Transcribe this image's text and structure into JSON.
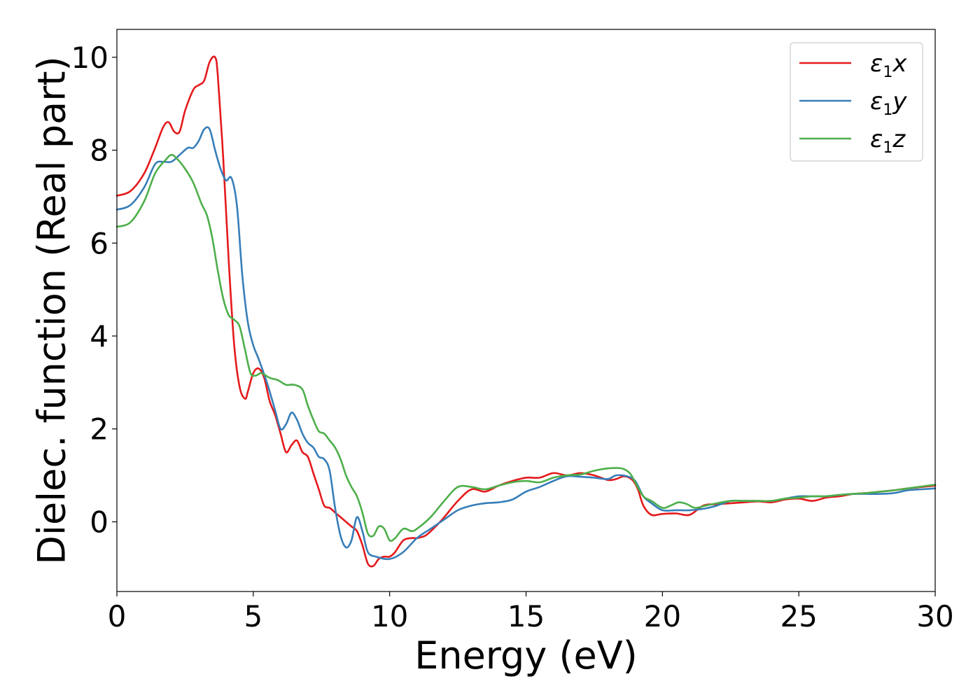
{
  "chart_data": {
    "type": "line",
    "title": "",
    "xlabel": "Energy (eV)",
    "ylabel": "Dielec. function (Real part)",
    "xlim": [
      0,
      30
    ],
    "ylim": [
      -1.5,
      10.6
    ],
    "xticks": [
      0,
      5,
      10,
      15,
      20,
      25,
      30
    ],
    "xtick_labels": [
      "0",
      "5",
      "10",
      "15",
      "20",
      "25",
      "30"
    ],
    "yticks": [
      0,
      2,
      4,
      6,
      8,
      10
    ],
    "ytick_labels": [
      "0",
      "2",
      "4",
      "6",
      "8",
      "10"
    ],
    "grid": false,
    "legend_position": "top-right",
    "series": [
      {
        "name": "ε1x",
        "name_base": "ε",
        "name_sub": "1",
        "name_var": "x",
        "color": "#e41a1c",
        "x": [
          0,
          0.5,
          1.0,
          1.4,
          1.7,
          1.9,
          2.1,
          2.3,
          2.5,
          2.8,
          3.0,
          3.2,
          3.4,
          3.6,
          3.7,
          3.9,
          4.1,
          4.3,
          4.5,
          4.7,
          4.8,
          5.0,
          5.2,
          5.4,
          5.6,
          5.8,
          6.0,
          6.2,
          6.4,
          6.6,
          6.8,
          7.0,
          7.2,
          7.4,
          7.6,
          7.8,
          8.0,
          8.2,
          8.4,
          8.6,
          8.8,
          9.0,
          9.2,
          9.4,
          9.6,
          9.8,
          10.0,
          10.2,
          10.5,
          10.8,
          11.0,
          11.3,
          11.6,
          12.0,
          12.5,
          13.0,
          13.5,
          14.0,
          14.5,
          15.0,
          15.5,
          16.0,
          16.5,
          17.0,
          17.5,
          18.0,
          18.3,
          18.6,
          18.9,
          19.1,
          19.3,
          19.6,
          20.0,
          20.5,
          21.0,
          21.5,
          22.0,
          22.5,
          23.0,
          23.5,
          24.0,
          24.5,
          25.0,
          25.5,
          26.0,
          26.5,
          27.0,
          27.5,
          28.0,
          28.5,
          29.0,
          29.5,
          30.0
        ],
        "y": [
          7.02,
          7.12,
          7.5,
          8.05,
          8.5,
          8.6,
          8.4,
          8.4,
          8.85,
          9.3,
          9.4,
          9.5,
          9.9,
          10.0,
          9.6,
          7.8,
          5.6,
          3.8,
          2.9,
          2.65,
          2.8,
          3.2,
          3.3,
          3.1,
          2.6,
          2.3,
          1.9,
          1.5,
          1.65,
          1.75,
          1.5,
          1.4,
          1.05,
          0.7,
          0.35,
          0.3,
          0.2,
          0.1,
          0.0,
          -0.1,
          -0.2,
          -0.5,
          -0.9,
          -0.95,
          -0.8,
          -0.75,
          -0.75,
          -0.65,
          -0.4,
          -0.35,
          -0.35,
          -0.3,
          -0.15,
          0.1,
          0.45,
          0.7,
          0.65,
          0.78,
          0.88,
          0.95,
          0.95,
          1.05,
          1.0,
          1.05,
          1.0,
          0.9,
          0.92,
          0.98,
          0.9,
          0.7,
          0.35,
          0.15,
          0.17,
          0.18,
          0.15,
          0.35,
          0.38,
          0.4,
          0.42,
          0.44,
          0.42,
          0.48,
          0.5,
          0.45,
          0.52,
          0.55,
          0.6,
          0.62,
          0.65,
          0.68,
          0.72,
          0.75,
          0.78
        ]
      },
      {
        "name": "ε1y",
        "name_base": "ε",
        "name_sub": "1",
        "name_var": "y",
        "color": "#377eb8",
        "x": [
          0,
          0.5,
          1.0,
          1.4,
          1.7,
          2.0,
          2.3,
          2.6,
          2.8,
          3.0,
          3.2,
          3.4,
          3.6,
          3.8,
          4.0,
          4.2,
          4.4,
          4.6,
          4.8,
          5.0,
          5.2,
          5.5,
          5.8,
          6.0,
          6.2,
          6.4,
          6.6,
          6.8,
          7.0,
          7.2,
          7.4,
          7.6,
          7.8,
          8.0,
          8.2,
          8.4,
          8.6,
          8.8,
          9.0,
          9.2,
          9.5,
          10.0,
          10.5,
          11.0,
          11.5,
          12.0,
          12.5,
          13.0,
          13.5,
          14.0,
          14.5,
          15.0,
          15.5,
          16.0,
          16.5,
          17.0,
          17.5,
          18.0,
          18.3,
          18.7,
          19.0,
          19.3,
          19.6,
          20.0,
          20.5,
          21.0,
          21.5,
          22.0,
          22.5,
          23.0,
          23.5,
          24.0,
          24.5,
          25.0,
          25.5,
          26.0,
          26.5,
          27.0,
          27.5,
          28.0,
          28.5,
          29.0,
          29.5,
          30.0
        ],
        "y": [
          6.72,
          6.82,
          7.2,
          7.7,
          7.75,
          7.75,
          7.9,
          8.05,
          8.05,
          8.2,
          8.45,
          8.45,
          8.0,
          7.6,
          7.35,
          7.4,
          6.8,
          5.3,
          4.3,
          3.8,
          3.5,
          3.0,
          2.4,
          2.0,
          2.1,
          2.35,
          2.2,
          1.9,
          1.7,
          1.6,
          1.4,
          1.35,
          1.1,
          0.3,
          -0.3,
          -0.55,
          -0.4,
          0.1,
          -0.2,
          -0.65,
          -0.75,
          -0.8,
          -0.65,
          -0.35,
          -0.15,
          0.05,
          0.25,
          0.35,
          0.4,
          0.42,
          0.48,
          0.65,
          0.75,
          0.88,
          0.98,
          0.97,
          0.95,
          0.92,
          1.0,
          0.98,
          0.88,
          0.55,
          0.4,
          0.25,
          0.25,
          0.25,
          0.28,
          0.35,
          0.45,
          0.45,
          0.45,
          0.45,
          0.5,
          0.55,
          0.55,
          0.55,
          0.58,
          0.6,
          0.6,
          0.6,
          0.62,
          0.68,
          0.7,
          0.72
        ]
      },
      {
        "name": "ε1z",
        "name_base": "ε",
        "name_sub": "1",
        "name_var": "z",
        "color": "#4daf4a",
        "x": [
          0,
          0.5,
          1.0,
          1.4,
          1.8,
          2.0,
          2.2,
          2.5,
          2.8,
          3.1,
          3.3,
          3.5,
          3.7,
          3.9,
          4.1,
          4.3,
          4.5,
          4.7,
          4.9,
          5.1,
          5.3,
          5.6,
          5.9,
          6.2,
          6.5,
          6.8,
          7.0,
          7.2,
          7.4,
          7.6,
          7.8,
          8.0,
          8.2,
          8.4,
          8.6,
          8.8,
          9.0,
          9.2,
          9.4,
          9.6,
          9.8,
          10.0,
          10.2,
          10.5,
          10.8,
          11.0,
          11.5,
          12.0,
          12.5,
          13.0,
          13.5,
          14.0,
          14.5,
          15.0,
          15.5,
          16.0,
          16.5,
          17.0,
          17.5,
          18.0,
          18.5,
          18.8,
          19.0,
          19.3,
          19.6,
          20.0,
          20.3,
          20.6,
          20.9,
          21.2,
          21.6,
          22.0,
          22.5,
          23.0,
          23.5,
          24.0,
          24.5,
          25.0,
          25.5,
          26.0,
          26.5,
          27.0,
          27.5,
          28.0,
          28.5,
          29.0,
          29.5,
          30.0
        ],
        "y": [
          6.35,
          6.45,
          6.9,
          7.5,
          7.8,
          7.9,
          7.82,
          7.6,
          7.3,
          6.85,
          6.6,
          6.1,
          5.4,
          4.8,
          4.45,
          4.35,
          4.2,
          3.7,
          3.2,
          3.15,
          3.2,
          3.1,
          3.05,
          2.95,
          2.95,
          2.85,
          2.5,
          2.2,
          1.95,
          1.9,
          1.75,
          1.6,
          1.35,
          1.0,
          0.75,
          0.55,
          0.2,
          -0.25,
          -0.3,
          -0.1,
          -0.15,
          -0.4,
          -0.35,
          -0.15,
          -0.2,
          -0.15,
          0.1,
          0.45,
          0.75,
          0.75,
          0.7,
          0.78,
          0.85,
          0.88,
          0.85,
          0.95,
          1.0,
          1.02,
          1.1,
          1.15,
          1.15,
          1.05,
          0.85,
          0.55,
          0.45,
          0.3,
          0.35,
          0.42,
          0.38,
          0.3,
          0.35,
          0.4,
          0.45,
          0.45,
          0.45,
          0.45,
          0.5,
          0.52,
          0.55,
          0.55,
          0.58,
          0.6,
          0.62,
          0.65,
          0.68,
          0.72,
          0.76,
          0.8
        ]
      }
    ]
  }
}
